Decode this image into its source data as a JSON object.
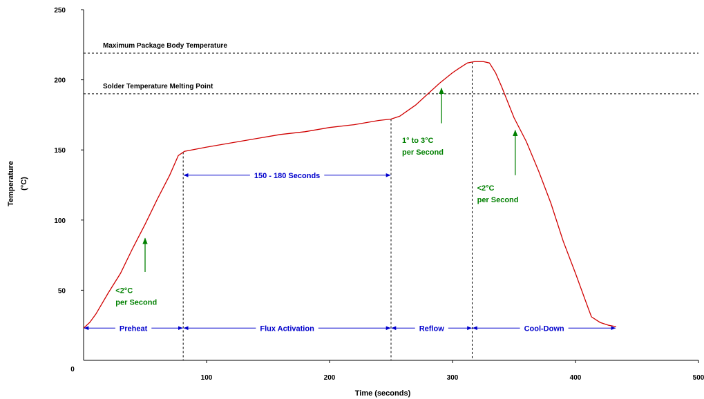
{
  "chart_data": {
    "type": "line",
    "xlabel": "Time (seconds)",
    "ylabel_lines": [
      "Temperature",
      "(°C)"
    ],
    "xlim": [
      0,
      500
    ],
    "ylim": [
      0,
      250
    ],
    "x_ticks": [
      "0",
      "100",
      "200",
      "300",
      "400",
      "500"
    ],
    "y_ticks": [
      "50",
      "100",
      "150",
      "200",
      "250"
    ],
    "grid": false,
    "series": [
      {
        "color": "#d00000",
        "points": [
          [
            0,
            23
          ],
          [
            5,
            27
          ],
          [
            10,
            33
          ],
          [
            20,
            48
          ],
          [
            30,
            62
          ],
          [
            40,
            80
          ],
          [
            50,
            97
          ],
          [
            60,
            115
          ],
          [
            70,
            132
          ],
          [
            77,
            146
          ],
          [
            82,
            149
          ],
          [
            100,
            152
          ],
          [
            120,
            155
          ],
          [
            140,
            158
          ],
          [
            160,
            161
          ],
          [
            180,
            163
          ],
          [
            200,
            166
          ],
          [
            220,
            168
          ],
          [
            240,
            171
          ],
          [
            250,
            172
          ],
          [
            257,
            174
          ],
          [
            270,
            182
          ],
          [
            280,
            190
          ],
          [
            290,
            198
          ],
          [
            300,
            205
          ],
          [
            305,
            208
          ],
          [
            312,
            212
          ],
          [
            318,
            213
          ],
          [
            325,
            213
          ],
          [
            330,
            212
          ],
          [
            335,
            205
          ],
          [
            340,
            195
          ],
          [
            350,
            173
          ],
          [
            360,
            156
          ],
          [
            370,
            135
          ],
          [
            380,
            112
          ],
          [
            390,
            85
          ],
          [
            400,
            62
          ],
          [
            410,
            38
          ],
          [
            413,
            31
          ],
          [
            420,
            27
          ],
          [
            427,
            25
          ],
          [
            433,
            24
          ]
        ]
      }
    ],
    "reference_lines": [
      {
        "y": 219,
        "label": "Maximum Package Body Temperature"
      },
      {
        "y": 190,
        "label": "Solder Temperature Melting Point"
      }
    ],
    "vertical_lines": [
      81,
      250,
      316
    ],
    "phase_labels": [
      {
        "label": "Preheat",
        "x0": 0,
        "x1": 81
      },
      {
        "label": "Flux Activation",
        "x0": 81,
        "x1": 250
      },
      {
        "label": "Reflow",
        "x0": 250,
        "x1": 316
      },
      {
        "label": "Cool-Down",
        "x0": 316,
        "x1": 433
      }
    ],
    "phase_y": 23,
    "duration_label": {
      "label": "150 - 180 Seconds",
      "x0": 81,
      "x1": 250,
      "y": 132
    },
    "rate_annotations": [
      {
        "lines": [
          "<2°C",
          "per Second"
        ],
        "arrow_x": 50,
        "arrow_y0": 63,
        "arrow_y1": 87,
        "text_x": 26,
        "text_y": 48
      },
      {
        "lines": [
          "1° to 3°C",
          "per Second"
        ],
        "arrow_x": 291,
        "arrow_y0": 169,
        "arrow_y1": 194,
        "text_x": 259,
        "text_y": 155
      },
      {
        "lines": [
          "<2°C",
          "per Second"
        ],
        "arrow_x": 351,
        "arrow_y0": 132,
        "arrow_y1": 164,
        "text_x": 320,
        "text_y": 121
      }
    ],
    "colors": {
      "curve": "#d00000",
      "phase": "#0000cc",
      "rate": "#008000",
      "axis": "#000000"
    }
  }
}
